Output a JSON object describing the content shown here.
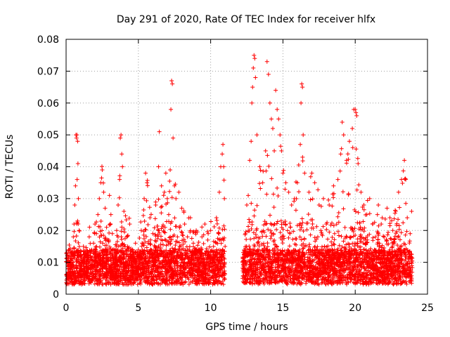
{
  "chart_data": {
    "type": "scatter",
    "title": "Day 291 of 2020, Rate Of TEC Index for receiver hlfx",
    "xlabel": "GPS time / hours",
    "ylabel": "ROTI / TECUs",
    "xlim": [
      0,
      25
    ],
    "ylim": [
      0,
      0.08
    ],
    "grid": true,
    "marker": "+",
    "series_color": "#ff0000",
    "x_ticks": [
      0,
      5,
      10,
      15,
      20,
      25
    ],
    "x_tick_labels": [
      "0",
      "5",
      "10",
      "15",
      "20",
      "25"
    ],
    "y_ticks": [
      0,
      0.01,
      0.02,
      0.03,
      0.04,
      0.05,
      0.06,
      0.07,
      0.08
    ],
    "y_tick_labels": [
      "0",
      "0.01",
      "0.02",
      "0.03",
      "0.04",
      "0.05",
      "0.06",
      "0.07",
      "0.08"
    ],
    "series": [
      {
        "name": "ROTI",
        "points": [
          [
            0.05,
            0.006
          ],
          [
            0.1,
            0.012
          ],
          [
            0.15,
            0.008
          ],
          [
            0.2,
            0.005
          ],
          [
            0.3,
            0.013
          ],
          [
            0.4,
            0.009
          ],
          [
            0.5,
            0.018
          ],
          [
            0.55,
            0.022
          ],
          [
            0.6,
            0.028
          ],
          [
            0.65,
            0.034
          ],
          [
            0.68,
            0.05
          ],
          [
            0.72,
            0.049
          ],
          [
            0.75,
            0.05
          ],
          [
            0.8,
            0.048
          ],
          [
            0.82,
            0.041
          ],
          [
            0.85,
            0.03
          ],
          [
            0.9,
            0.02
          ],
          [
            1.0,
            0.012
          ],
          [
            1.1,
            0.01
          ],
          [
            1.2,
            0.015
          ],
          [
            1.3,
            0.008
          ],
          [
            1.4,
            0.006
          ],
          [
            1.5,
            0.011
          ],
          [
            1.6,
            0.018
          ],
          [
            1.7,
            0.012
          ],
          [
            1.8,
            0.009
          ],
          [
            1.9,
            0.016
          ],
          [
            2.0,
            0.022
          ],
          [
            2.1,
            0.019
          ],
          [
            2.2,
            0.025
          ],
          [
            2.3,
            0.03
          ],
          [
            2.4,
            0.035
          ],
          [
            2.5,
            0.039
          ],
          [
            2.6,
            0.032
          ],
          [
            2.7,
            0.027
          ],
          [
            2.8,
            0.021
          ],
          [
            2.9,
            0.017
          ],
          [
            3.0,
            0.031
          ],
          [
            3.1,
            0.025
          ],
          [
            3.2,
            0.019
          ],
          [
            3.3,
            0.014
          ],
          [
            3.4,
            0.012
          ],
          [
            3.5,
            0.02
          ],
          [
            3.6,
            0.028
          ],
          [
            3.7,
            0.036
          ],
          [
            3.75,
            0.049
          ],
          [
            3.8,
            0.05
          ],
          [
            3.85,
            0.044
          ],
          [
            3.9,
            0.04
          ],
          [
            4.0,
            0.026
          ],
          [
            4.2,
            0.018
          ],
          [
            4.4,
            0.022
          ],
          [
            4.6,
            0.014
          ],
          [
            4.8,
            0.016
          ],
          [
            5.0,
            0.012
          ],
          [
            5.2,
            0.02
          ],
          [
            5.4,
            0.03
          ],
          [
            5.5,
            0.038
          ],
          [
            5.6,
            0.035
          ],
          [
            5.8,
            0.024
          ],
          [
            6.0,
            0.019
          ],
          [
            6.2,
            0.028
          ],
          [
            6.4,
            0.04
          ],
          [
            6.45,
            0.051
          ],
          [
            6.6,
            0.034
          ],
          [
            6.8,
            0.032
          ],
          [
            6.9,
            0.038
          ],
          [
            7.0,
            0.03
          ],
          [
            7.1,
            0.025
          ],
          [
            7.2,
            0.039
          ],
          [
            7.25,
            0.058
          ],
          [
            7.3,
            0.067
          ],
          [
            7.35,
            0.066
          ],
          [
            7.4,
            0.049
          ],
          [
            7.5,
            0.034
          ],
          [
            7.6,
            0.03
          ],
          [
            7.8,
            0.032
          ],
          [
            8.0,
            0.027
          ],
          [
            8.2,
            0.022
          ],
          [
            8.4,
            0.018
          ],
          [
            8.6,
            0.024
          ],
          [
            8.8,
            0.016
          ],
          [
            9.0,
            0.02
          ],
          [
            9.2,
            0.014
          ],
          [
            9.4,
            0.018
          ],
          [
            9.6,
            0.022
          ],
          [
            9.8,
            0.017
          ],
          [
            10.0,
            0.02
          ],
          [
            10.2,
            0.015
          ],
          [
            10.4,
            0.024
          ],
          [
            10.6,
            0.032
          ],
          [
            10.7,
            0.04
          ],
          [
            10.8,
            0.044
          ],
          [
            10.85,
            0.047
          ],
          [
            10.9,
            0.04
          ],
          [
            10.95,
            0.03
          ],
          [
            11.0,
            0.015
          ],
          [
            12.3,
            0.01
          ],
          [
            12.4,
            0.019
          ],
          [
            12.5,
            0.028
          ],
          [
            12.6,
            0.031
          ],
          [
            12.7,
            0.042
          ],
          [
            12.8,
            0.048
          ],
          [
            12.85,
            0.06
          ],
          [
            12.9,
            0.065
          ],
          [
            12.95,
            0.071
          ],
          [
            13.0,
            0.075
          ],
          [
            13.05,
            0.074
          ],
          [
            13.1,
            0.068
          ],
          [
            13.2,
            0.05
          ],
          [
            13.4,
            0.04
          ],
          [
            13.6,
            0.035
          ],
          [
            13.8,
            0.045
          ],
          [
            13.9,
            0.073
          ],
          [
            14.0,
            0.069
          ],
          [
            14.1,
            0.06
          ],
          [
            14.2,
            0.055
          ],
          [
            14.3,
            0.052
          ],
          [
            14.4,
            0.045
          ],
          [
            14.5,
            0.064
          ],
          [
            14.6,
            0.058
          ],
          [
            14.7,
            0.055
          ],
          [
            14.8,
            0.05
          ],
          [
            14.9,
            0.045
          ],
          [
            15.0,
            0.038
          ],
          [
            15.2,
            0.035
          ],
          [
            15.4,
            0.032
          ],
          [
            15.6,
            0.028
          ],
          [
            15.8,
            0.03
          ],
          [
            16.0,
            0.035
          ],
          [
            16.2,
            0.047
          ],
          [
            16.25,
            0.06
          ],
          [
            16.3,
            0.066
          ],
          [
            16.35,
            0.065
          ],
          [
            16.4,
            0.05
          ],
          [
            16.5,
            0.038
          ],
          [
            16.8,
            0.032
          ],
          [
            17.0,
            0.038
          ],
          [
            17.2,
            0.035
          ],
          [
            17.5,
            0.028
          ],
          [
            17.8,
            0.03
          ],
          [
            18.0,
            0.022
          ],
          [
            18.2,
            0.028
          ],
          [
            18.5,
            0.034
          ],
          [
            18.8,
            0.036
          ],
          [
            19.0,
            0.044
          ],
          [
            19.1,
            0.054
          ],
          [
            19.2,
            0.05
          ],
          [
            19.4,
            0.042
          ],
          [
            19.6,
            0.048
          ],
          [
            19.8,
            0.052
          ],
          [
            19.9,
            0.058
          ],
          [
            20.0,
            0.058
          ],
          [
            20.05,
            0.057
          ],
          [
            20.1,
            0.056
          ],
          [
            20.2,
            0.041
          ],
          [
            20.4,
            0.032
          ],
          [
            20.6,
            0.028
          ],
          [
            20.8,
            0.025
          ],
          [
            21.0,
            0.03
          ],
          [
            21.2,
            0.022
          ],
          [
            21.4,
            0.018
          ],
          [
            21.6,
            0.028
          ],
          [
            21.8,
            0.022
          ],
          [
            22.0,
            0.018
          ],
          [
            22.2,
            0.027
          ],
          [
            22.4,
            0.024
          ],
          [
            22.6,
            0.02
          ],
          [
            22.8,
            0.026
          ],
          [
            23.0,
            0.032
          ],
          [
            23.2,
            0.036
          ],
          [
            23.4,
            0.042
          ],
          [
            23.5,
            0.036
          ],
          [
            23.6,
            0.024
          ],
          [
            23.8,
            0.019
          ],
          [
            23.9,
            0.026
          ]
        ]
      }
    ]
  }
}
